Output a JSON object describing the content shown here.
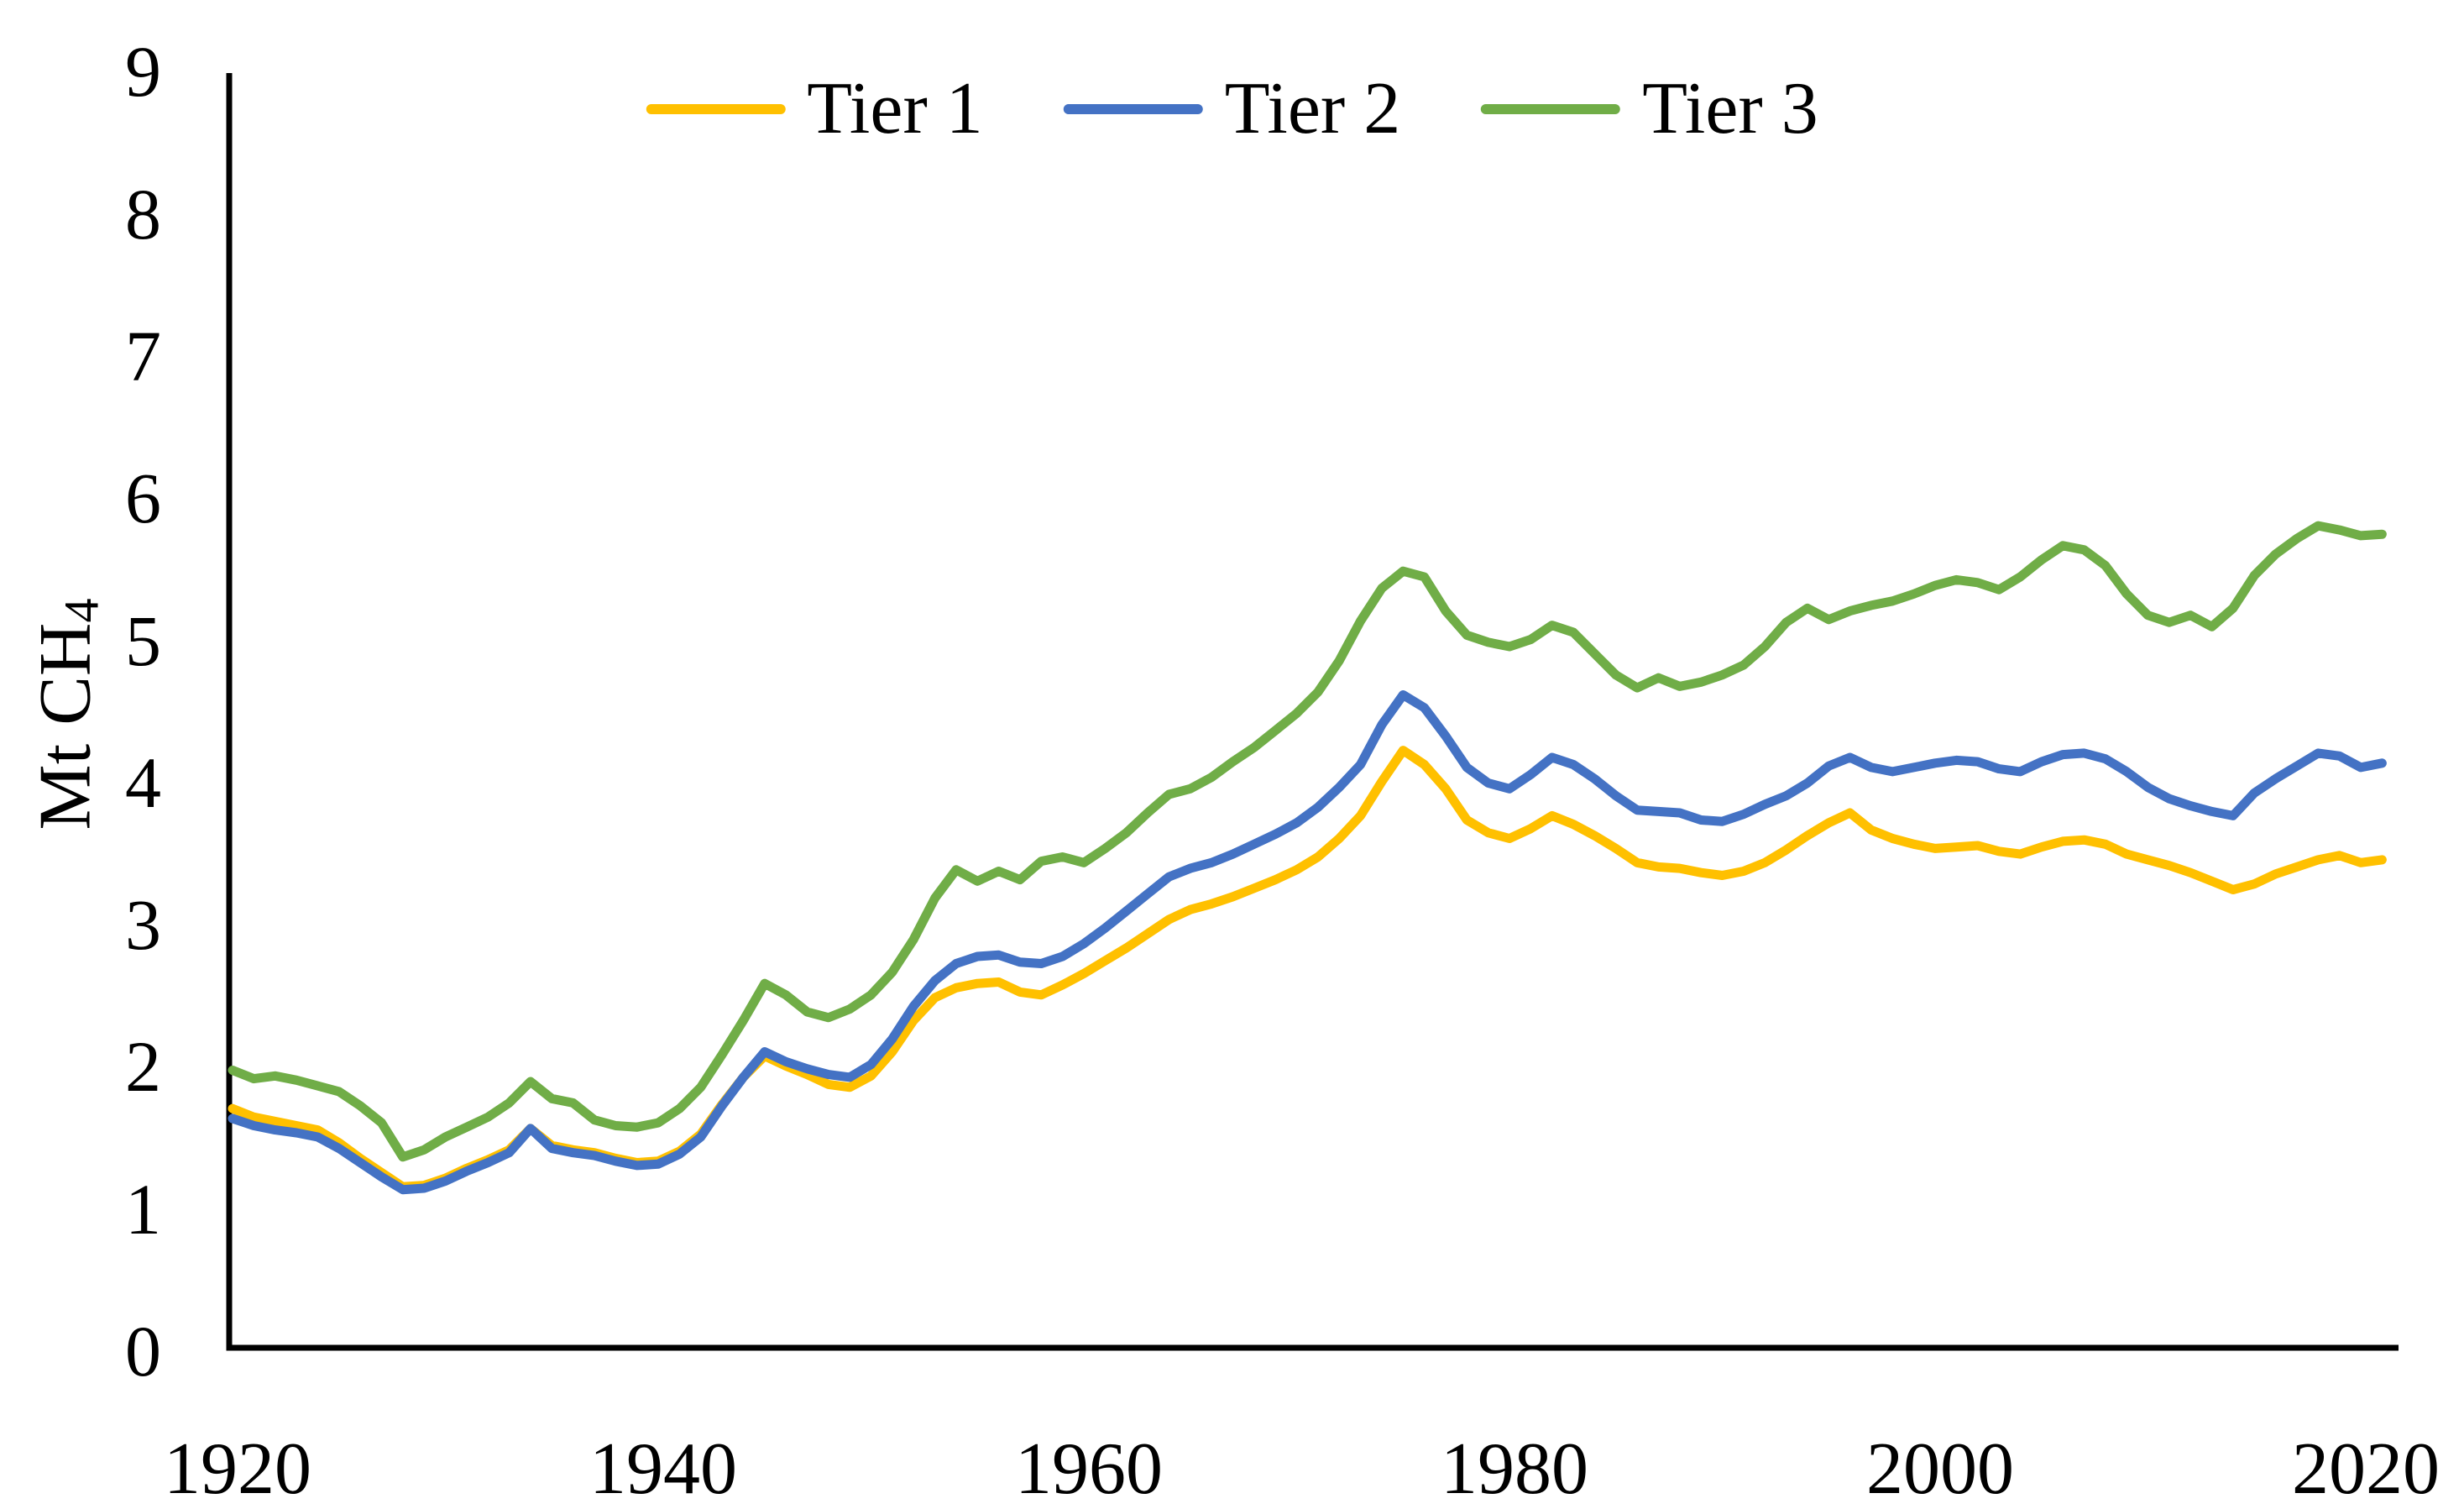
{
  "chart_data": {
    "type": "line",
    "title": "",
    "ylabel_main": "Mt CH",
    "ylabel_sub": "4",
    "xlabel": "",
    "x_start": 1920,
    "x_end": 2021,
    "x_ticks": [
      "1920",
      "1940",
      "1960",
      "1980",
      "2000",
      "2020"
    ],
    "y_ticks": [
      "0",
      "1",
      "2",
      "3",
      "4",
      "5",
      "6",
      "7",
      "8",
      "9"
    ],
    "ylim": [
      0,
      9
    ],
    "grid": false,
    "legend_position": "top-center",
    "series": [
      {
        "name": "Tier 1",
        "color": "#FFC000",
        "values": [
          1.7,
          1.64,
          1.61,
          1.58,
          1.55,
          1.46,
          1.35,
          1.25,
          1.15,
          1.16,
          1.21,
          1.28,
          1.34,
          1.41,
          1.56,
          1.44,
          1.41,
          1.39,
          1.35,
          1.32,
          1.33,
          1.4,
          1.52,
          1.73,
          1.92,
          2.07,
          2.0,
          1.94,
          1.87,
          1.85,
          1.93,
          2.1,
          2.32,
          2.48,
          2.55,
          2.58,
          2.59,
          2.52,
          2.5,
          2.57,
          2.65,
          2.74,
          2.83,
          2.93,
          3.03,
          3.1,
          3.14,
          3.19,
          3.25,
          3.31,
          3.38,
          3.47,
          3.6,
          3.76,
          4.0,
          4.22,
          4.12,
          3.95,
          3.73,
          3.64,
          3.6,
          3.67,
          3.76,
          3.7,
          3.62,
          3.53,
          3.43,
          3.4,
          3.39,
          3.36,
          3.34,
          3.37,
          3.43,
          3.52,
          3.62,
          3.71,
          3.78,
          3.66,
          3.6,
          3.56,
          3.53,
          3.54,
          3.55,
          3.51,
          3.49,
          3.54,
          3.58,
          3.59,
          3.56,
          3.49,
          3.45,
          3.41,
          3.36,
          3.3,
          3.24,
          3.28,
          3.35,
          3.4,
          3.45,
          3.48,
          3.43,
          3.45
        ]
      },
      {
        "name": "Tier 2",
        "color": "#4472C4",
        "values": [
          1.63,
          1.58,
          1.55,
          1.53,
          1.5,
          1.42,
          1.32,
          1.22,
          1.13,
          1.14,
          1.19,
          1.26,
          1.32,
          1.39,
          1.56,
          1.42,
          1.39,
          1.37,
          1.33,
          1.3,
          1.31,
          1.38,
          1.5,
          1.72,
          1.92,
          2.1,
          2.03,
          1.98,
          1.94,
          1.92,
          2.01,
          2.19,
          2.42,
          2.6,
          2.72,
          2.77,
          2.78,
          2.73,
          2.72,
          2.77,
          2.86,
          2.97,
          3.09,
          3.21,
          3.33,
          3.39,
          3.43,
          3.49,
          3.56,
          3.63,
          3.71,
          3.82,
          3.96,
          4.12,
          4.4,
          4.61,
          4.52,
          4.32,
          4.1,
          3.99,
          3.95,
          4.05,
          4.17,
          4.12,
          4.02,
          3.9,
          3.8,
          3.79,
          3.78,
          3.73,
          3.72,
          3.77,
          3.84,
          3.9,
          3.99,
          4.11,
          4.17,
          4.1,
          4.07,
          4.1,
          4.13,
          4.15,
          4.14,
          4.09,
          4.07,
          4.14,
          4.19,
          4.2,
          4.16,
          4.07,
          3.96,
          3.88,
          3.83,
          3.79,
          3.76,
          3.92,
          4.02,
          4.11,
          4.2,
          4.18,
          4.1,
          4.13
        ]
      },
      {
        "name": "Tier 3",
        "color": "#70AD47",
        "values": [
          1.97,
          1.91,
          1.93,
          1.9,
          1.86,
          1.82,
          1.72,
          1.6,
          1.36,
          1.41,
          1.5,
          1.57,
          1.64,
          1.74,
          1.89,
          1.77,
          1.74,
          1.62,
          1.58,
          1.57,
          1.6,
          1.7,
          1.85,
          2.08,
          2.32,
          2.58,
          2.5,
          2.38,
          2.34,
          2.4,
          2.5,
          2.66,
          2.89,
          3.18,
          3.38,
          3.3,
          3.37,
          3.31,
          3.44,
          3.47,
          3.43,
          3.53,
          3.64,
          3.78,
          3.91,
          3.95,
          4.03,
          4.14,
          4.24,
          4.36,
          4.48,
          4.63,
          4.85,
          5.13,
          5.36,
          5.48,
          5.44,
          5.2,
          5.03,
          4.98,
          4.95,
          5.0,
          5.1,
          5.05,
          4.9,
          4.75,
          4.66,
          4.73,
          4.67,
          4.7,
          4.75,
          4.82,
          4.95,
          5.12,
          5.22,
          5.14,
          5.2,
          5.24,
          5.27,
          5.32,
          5.38,
          5.42,
          5.4,
          5.35,
          5.44,
          5.56,
          5.66,
          5.63,
          5.52,
          5.32,
          5.17,
          5.12,
          5.17,
          5.09,
          5.22,
          5.45,
          5.6,
          5.71,
          5.8,
          5.77,
          5.73,
          5.74
        ]
      }
    ],
    "style": {
      "line_width": 11,
      "axis_color": "#000000",
      "background": "#ffffff"
    }
  }
}
